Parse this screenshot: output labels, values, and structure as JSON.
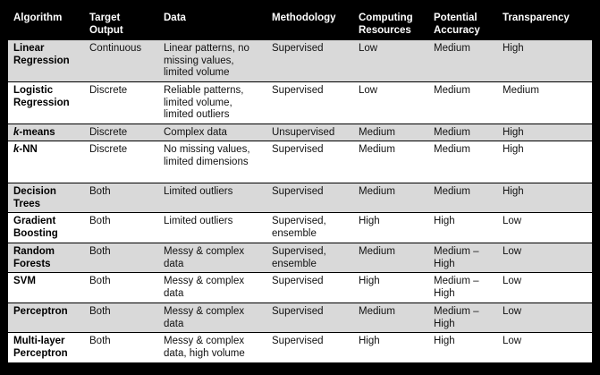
{
  "headers": [
    "Algorithm",
    "Target Output",
    "Data",
    "Methodology",
    "Computing Resources",
    "Potential Accuracy",
    "Transparency"
  ],
  "rows": [
    {
      "algorithm": "Linear Regression",
      "target_output": "Continuous",
      "data": "Linear patterns, no missing values, limited volume",
      "methodology": "Supervised",
      "computing": "Low",
      "accuracy": "Medium",
      "transparency": "High"
    },
    {
      "algorithm": "Logistic Regression",
      "target_output": "Discrete",
      "data": "Reliable patterns, limited volume, limited outliers",
      "methodology": "Supervised",
      "computing": "Low",
      "accuracy": "Medium",
      "transparency": "Medium"
    },
    {
      "algorithm_prefix": "k",
      "algorithm": "-means",
      "target_output": "Discrete",
      "data": "Complex data",
      "methodology": "Unsupervised",
      "computing": "Medium",
      "accuracy": "Medium",
      "transparency": "High"
    },
    {
      "algorithm_prefix": "k",
      "algorithm": "-NN",
      "target_output": "Discrete",
      "data": "No missing values, limited dimensions",
      "methodology": "Supervised",
      "computing": "Medium",
      "accuracy": "Medium",
      "transparency": "High"
    },
    {
      "algorithm": "Decision Trees",
      "target_output": "Both",
      "data": "Limited outliers",
      "methodology": "Supervised",
      "computing": "Medium",
      "accuracy": "Medium",
      "transparency": "High"
    },
    {
      "algorithm": "Gradient Boosting",
      "target_output": "Both",
      "data": "Limited outliers",
      "methodology": "Supervised, ensemble",
      "computing": "High",
      "accuracy": "High",
      "transparency": "Low"
    },
    {
      "algorithm": "Random Forests",
      "target_output": "Both",
      "data": "Messy & complex data",
      "methodology": "Supervised, ensemble",
      "computing": "Medium",
      "accuracy": "Medium – High",
      "transparency": "Low"
    },
    {
      "algorithm": "SVM",
      "target_output": "Both",
      "data": "Messy & complex data",
      "methodology": "Supervised",
      "computing": "High",
      "accuracy": "Medium – High",
      "transparency": "Low"
    },
    {
      "algorithm": "Perceptron",
      "target_output": "Both",
      "data": "Messy & complex data",
      "methodology": "Supervised",
      "computing": "Medium",
      "accuracy": "Medium – High",
      "transparency": "Low"
    },
    {
      "algorithm": "Multi-layer Perceptron",
      "target_output": "Both",
      "data": "Messy & complex data, high volume",
      "methodology": "Supervised",
      "computing": "High",
      "accuracy": "High",
      "transparency": "Low"
    }
  ]
}
